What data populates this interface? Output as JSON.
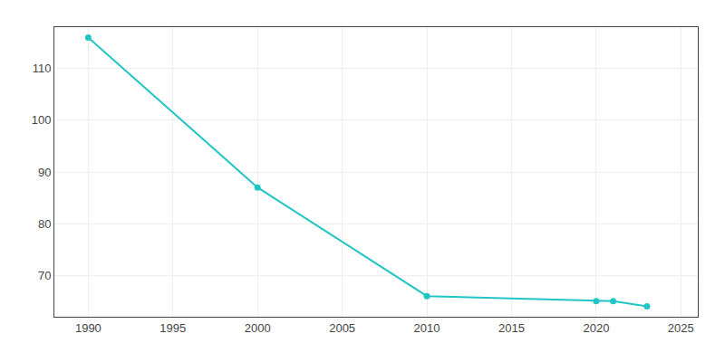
{
  "chart_data": {
    "type": "line",
    "x": [
      1990,
      2000,
      2010,
      2020,
      2021,
      2023
    ],
    "values": [
      116,
      87,
      66,
      65,
      65,
      64
    ],
    "color": "#22c5c5",
    "marker": "circle",
    "xlim": [
      1988,
      2026
    ],
    "ylim": [
      62,
      118
    ],
    "xticks": [
      1990,
      1995,
      2000,
      2005,
      2010,
      2015,
      2020,
      2025
    ],
    "yticks": [
      70,
      80,
      90,
      100,
      110
    ],
    "grid": true
  }
}
